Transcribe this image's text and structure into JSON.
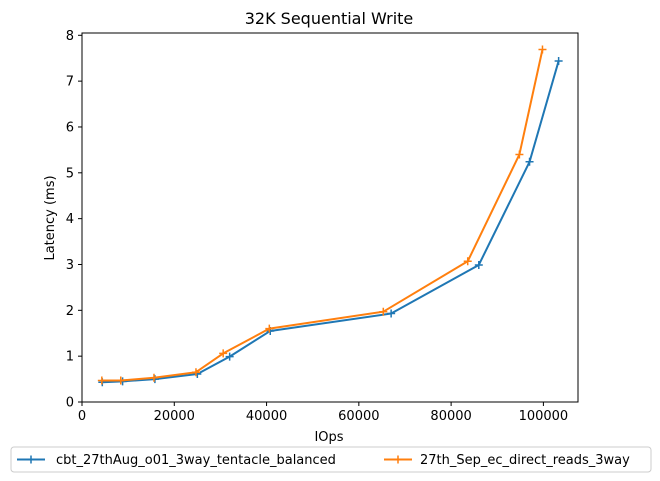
{
  "chart_data": {
    "type": "line",
    "title": "32K  Sequential Write",
    "xlabel": "IOps",
    "ylabel": "Latency (ms)",
    "xlim": [
      0,
      107500
    ],
    "ylim": [
      0,
      8.05
    ],
    "xticks": [
      0,
      20000,
      40000,
      60000,
      80000,
      100000
    ],
    "yticks": [
      0,
      1,
      2,
      3,
      4,
      5,
      6,
      7,
      8
    ],
    "grid": false,
    "legend_position": "bottom-center",
    "marker": "plus",
    "series": [
      {
        "name": "cbt_27thAug_o01_3way_tentacle_balanced",
        "color": "#1f77b4",
        "points": [
          [
            4400,
            0.43
          ],
          [
            8800,
            0.45
          ],
          [
            15800,
            0.5
          ],
          [
            25000,
            0.61
          ],
          [
            32000,
            0.99
          ],
          [
            40800,
            1.55
          ],
          [
            67000,
            1.93
          ],
          [
            86000,
            2.99
          ],
          [
            97000,
            5.24
          ],
          [
            103300,
            7.44
          ]
        ]
      },
      {
        "name": "27th_Sep_ec_direct_reads_3way",
        "color": "#ff7f0e",
        "points": [
          [
            4300,
            0.47
          ],
          [
            8400,
            0.47
          ],
          [
            15600,
            0.53
          ],
          [
            24700,
            0.65
          ],
          [
            30600,
            1.06
          ],
          [
            40600,
            1.6
          ],
          [
            65300,
            1.97
          ],
          [
            83600,
            3.07
          ],
          [
            94800,
            5.4
          ],
          [
            99800,
            7.69
          ]
        ]
      }
    ]
  }
}
